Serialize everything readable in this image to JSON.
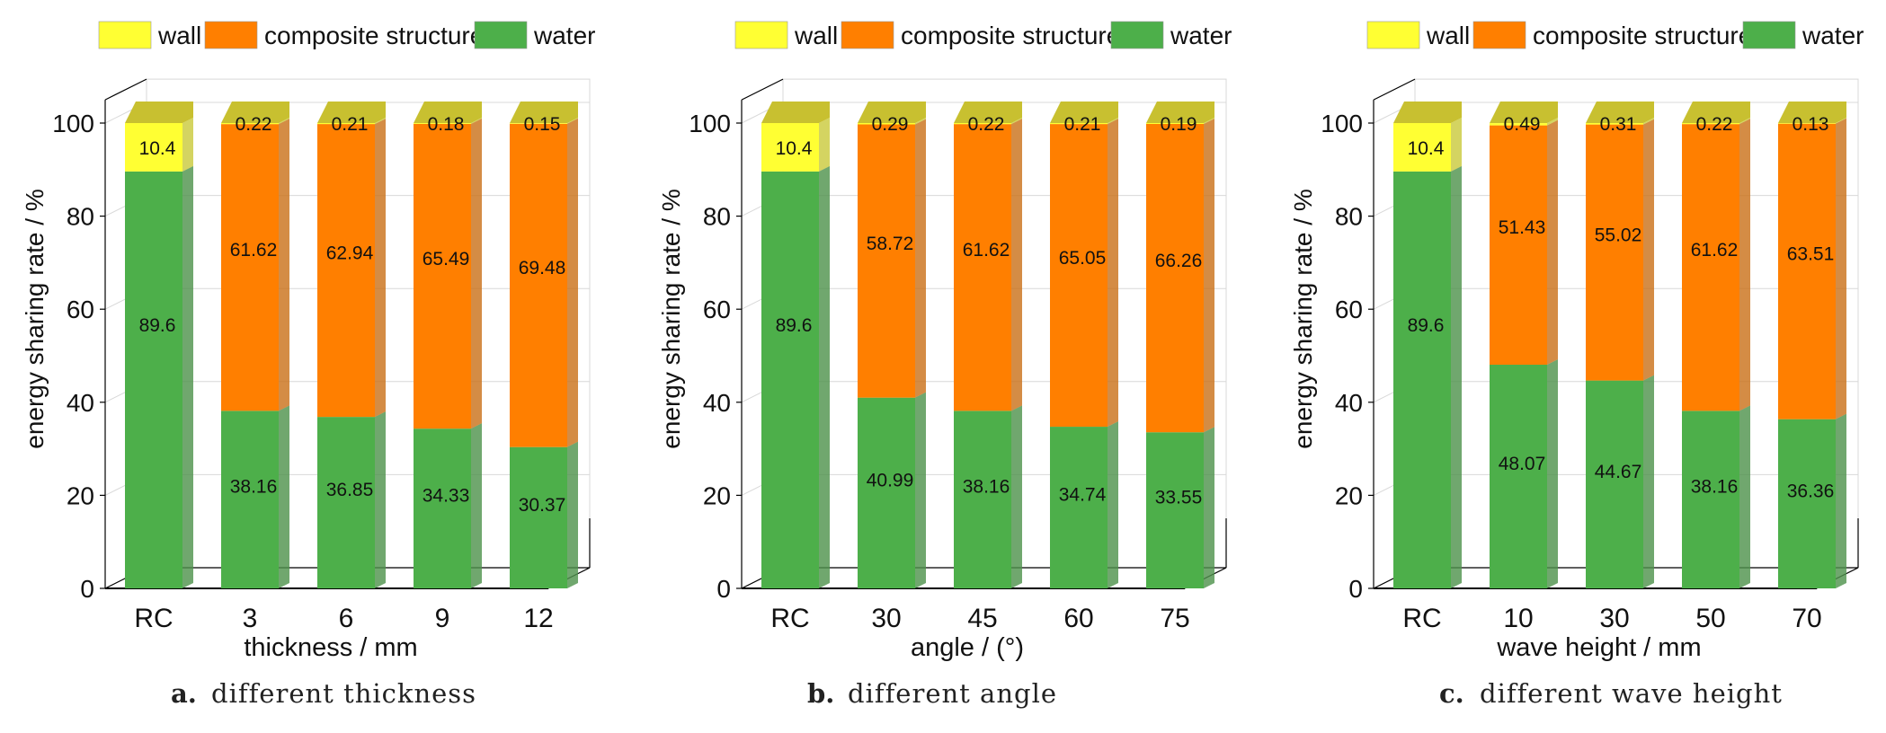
{
  "legend": [
    "wall",
    "composite structure",
    "water"
  ],
  "colors": {
    "wall": "#ffff33",
    "wall_top": "#c8c030",
    "composite": "#ff7f00",
    "water": "#4daf4a",
    "side_shade": "#555555",
    "box": "#000000",
    "grid": "#d8d8d8"
  },
  "chart_data": [
    {
      "type": "bar",
      "stacked": true,
      "panel_label": "a.",
      "caption": "different thickness",
      "xlabel": "thickness / mm",
      "ylabel": "energy sharing rate / %",
      "categories": [
        "RC",
        "3",
        "6",
        "9",
        "12"
      ],
      "ylim": [
        0,
        100
      ],
      "yticks": [
        0,
        20,
        40,
        60,
        80,
        100
      ],
      "grid": true,
      "legend_position": "top",
      "series": [
        {
          "name": "water",
          "values": [
            89.6,
            38.16,
            36.85,
            34.33,
            30.37
          ]
        },
        {
          "name": "composite structure",
          "values": [
            null,
            61.62,
            62.94,
            65.49,
            69.48
          ]
        },
        {
          "name": "wall",
          "values": [
            10.4,
            0.22,
            0.21,
            0.18,
            0.15
          ]
        }
      ]
    },
    {
      "type": "bar",
      "stacked": true,
      "panel_label": "b.",
      "caption": "different angle",
      "xlabel": "angle / (°)",
      "ylabel": "energy sharing rate / %",
      "categories": [
        "RC",
        "30",
        "45",
        "60",
        "75"
      ],
      "ylim": [
        0,
        100
      ],
      "yticks": [
        0,
        20,
        40,
        60,
        80,
        100
      ],
      "grid": true,
      "legend_position": "top",
      "series": [
        {
          "name": "water",
          "values": [
            89.6,
            40.99,
            38.16,
            34.74,
            33.55
          ]
        },
        {
          "name": "composite structure",
          "values": [
            null,
            58.72,
            61.62,
            65.05,
            66.26
          ]
        },
        {
          "name": "wall",
          "values": [
            10.4,
            0.29,
            0.22,
            0.21,
            0.19
          ]
        }
      ]
    },
    {
      "type": "bar",
      "stacked": true,
      "panel_label": "c.",
      "caption": "different wave height",
      "xlabel": "wave height / mm",
      "ylabel": "energy sharing rate / %",
      "categories": [
        "RC",
        "10",
        "30",
        "50",
        "70"
      ],
      "ylim": [
        0,
        100
      ],
      "yticks": [
        0,
        20,
        40,
        60,
        80,
        100
      ],
      "grid": true,
      "legend_position": "top",
      "series": [
        {
          "name": "water",
          "values": [
            89.6,
            48.07,
            44.67,
            38.16,
            36.36
          ]
        },
        {
          "name": "composite structure",
          "values": [
            null,
            51.43,
            55.02,
            61.62,
            63.51
          ]
        },
        {
          "name": "wall",
          "values": [
            10.4,
            0.49,
            0.31,
            0.22,
            0.13
          ]
        }
      ]
    }
  ]
}
